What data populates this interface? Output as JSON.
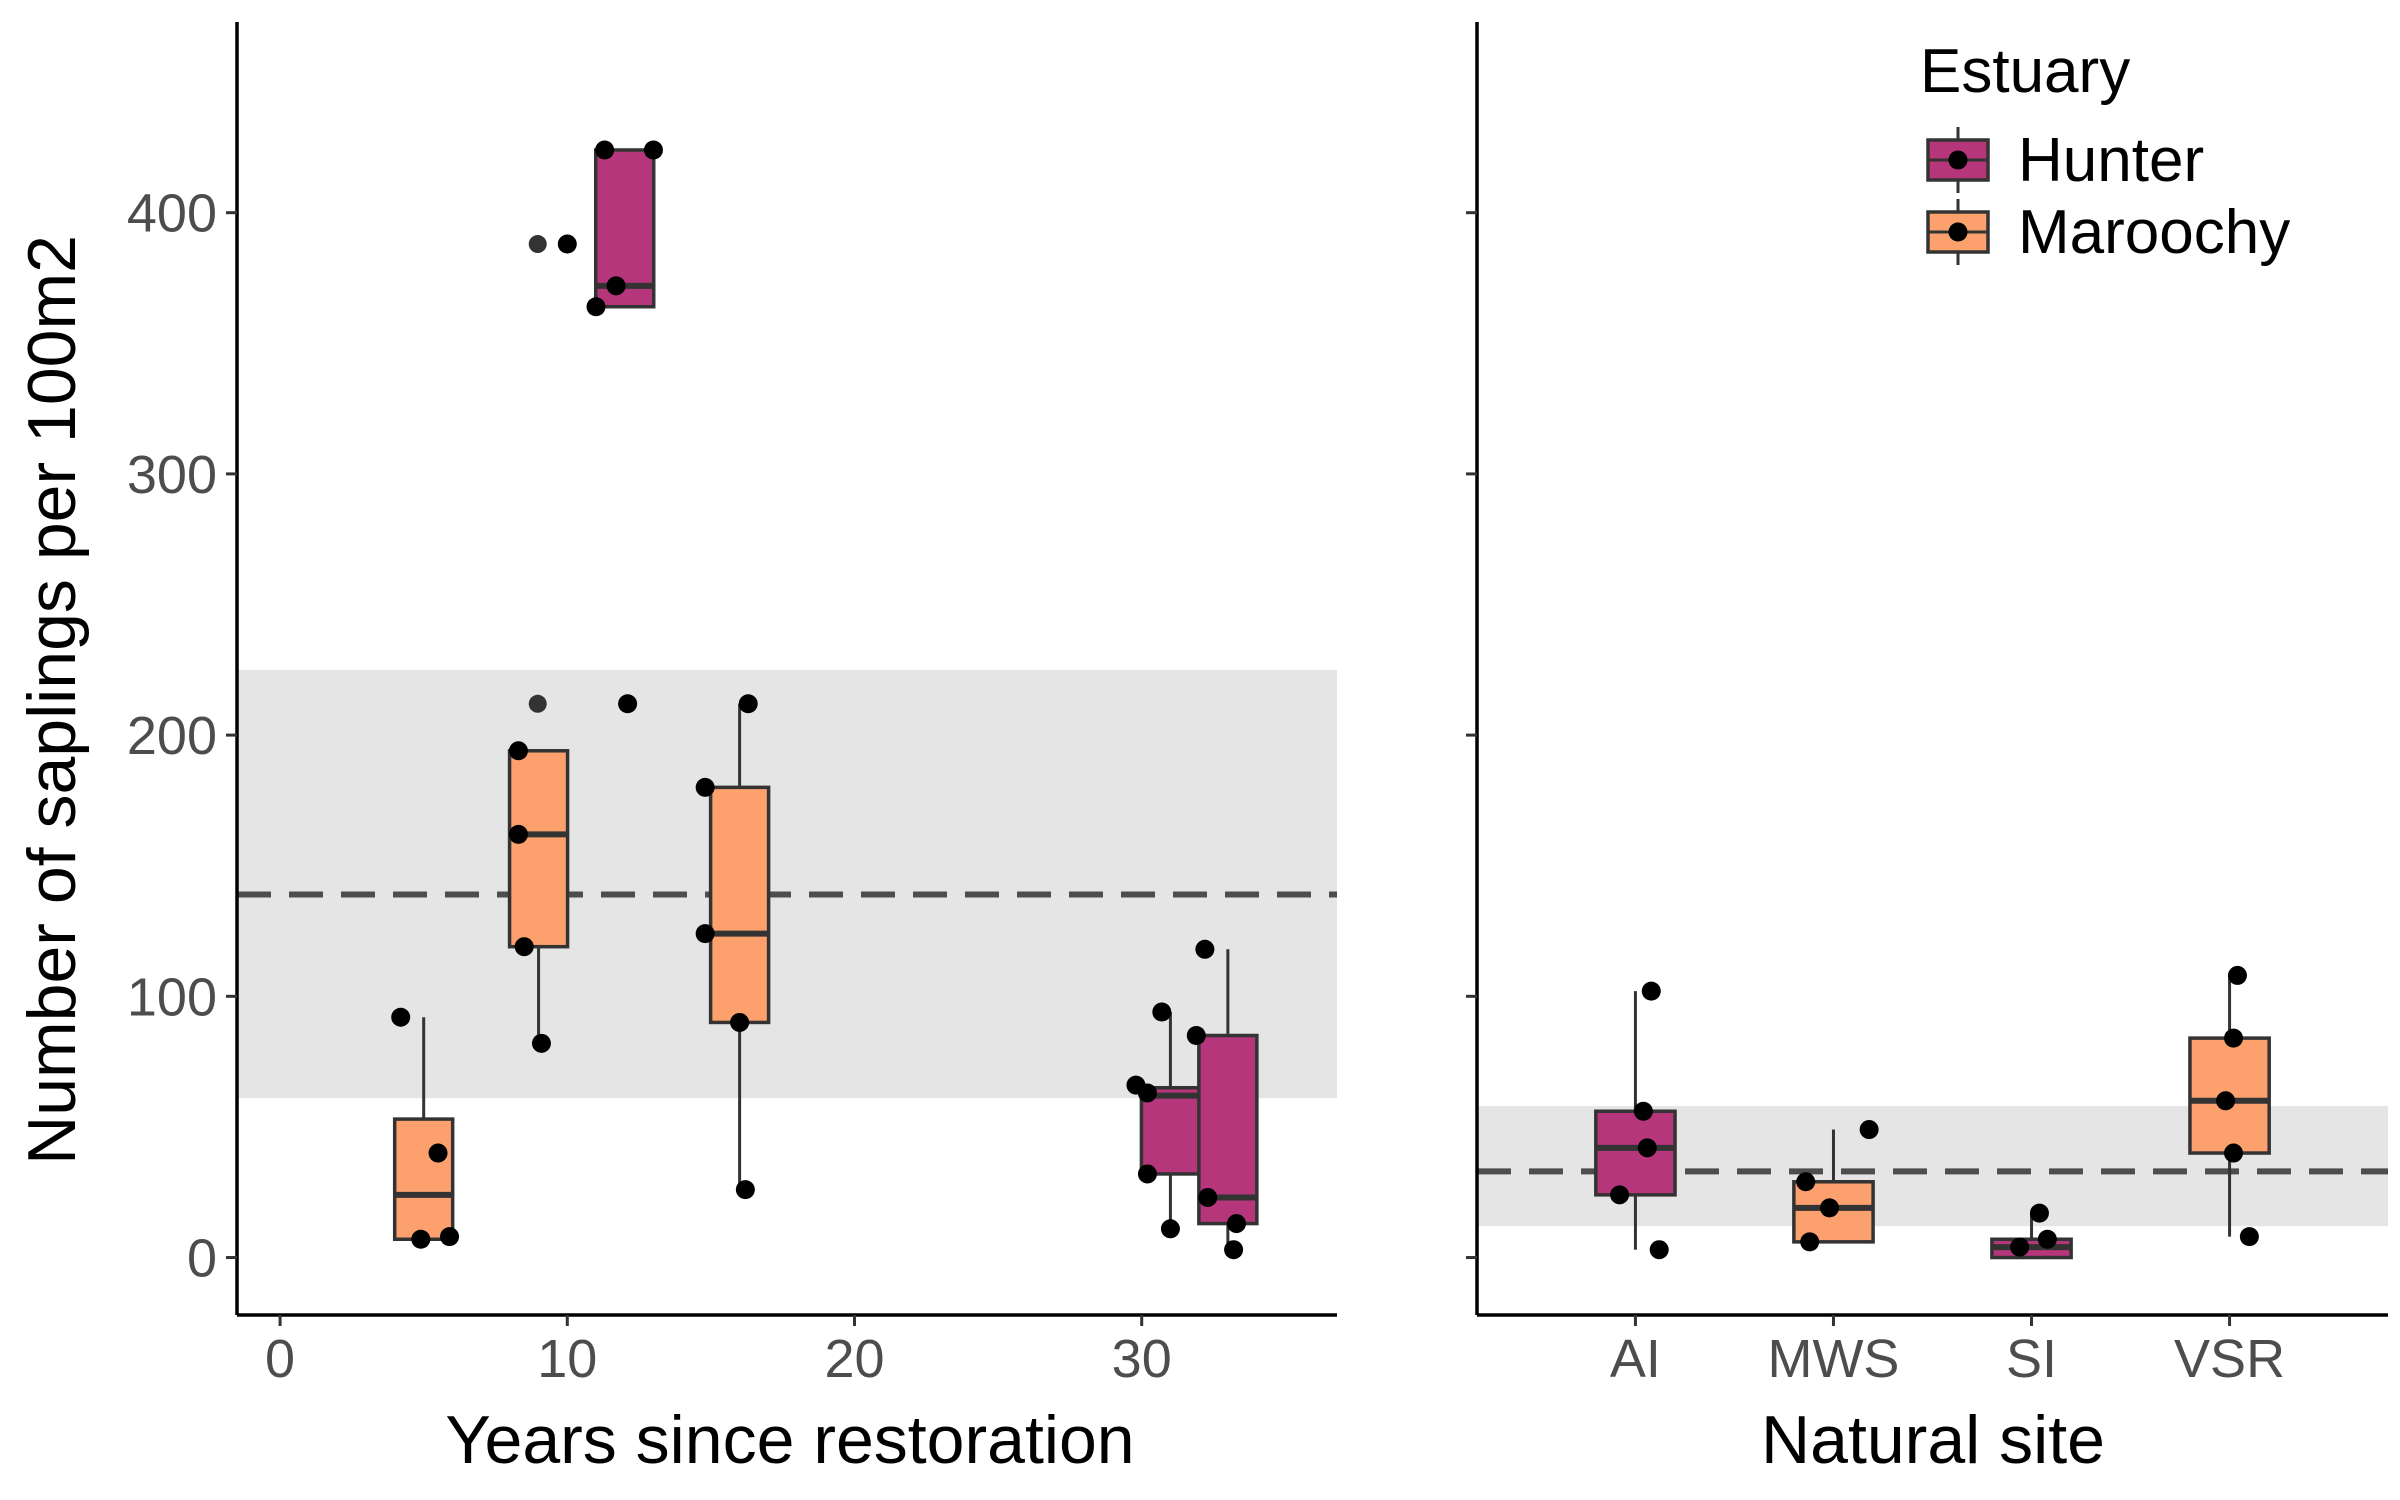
{
  "colors": {
    "hunter": "#B5367A",
    "maroochy": "#FCA06E",
    "band": "#E5E5E5",
    "line": "#333333",
    "refline": "#4D4D4D"
  },
  "legend": {
    "title": "Estuary",
    "items": [
      {
        "label": "Hunter",
        "color_key": "hunter"
      },
      {
        "label": "Maroochy",
        "color_key": "maroochy"
      }
    ],
    "position": "top-right"
  },
  "chart_data": [
    {
      "type": "box",
      "panel": "left",
      "xlabel": "Years since restoration",
      "ylabel": "Number of saplings per 100m2",
      "xlim": [
        -1.5,
        36.8
      ],
      "ylim": [
        -22,
        473
      ],
      "xticks": [
        0,
        10,
        20,
        30
      ],
      "yticks": [
        0,
        100,
        200,
        300,
        400
      ],
      "grid": false,
      "reference": {
        "mean": 139,
        "band": [
          61,
          225
        ]
      },
      "boxes": [
        {
          "estuary": "Maroochy",
          "x": 5,
          "q1": 7,
          "median": 24,
          "q3": 53,
          "whisker_low": 7,
          "whisker_high": 92,
          "outliers": []
        },
        {
          "estuary": "Maroochy",
          "x": 9,
          "q1": 119,
          "median": 162,
          "q3": 194,
          "whisker_low": 82,
          "whisker_high": 194,
          "outliers": []
        },
        {
          "estuary": "Hunter",
          "x": 12,
          "q1": 364,
          "median": 372,
          "q3": 424,
          "whisker_low": 364,
          "whisker_high": 424,
          "outliers": [
            388,
            212
          ]
        },
        {
          "estuary": "Maroochy",
          "x": 16,
          "q1": 90,
          "median": 124,
          "q3": 180,
          "whisker_low": 26,
          "whisker_high": 212,
          "outliers": []
        },
        {
          "estuary": "Hunter",
          "x": 31,
          "q1": 32,
          "median": 62,
          "q3": 65,
          "whisker_low": 11,
          "whisker_high": 94,
          "outliers": []
        },
        {
          "estuary": "Hunter",
          "x": 33,
          "q1": 13,
          "median": 23,
          "q3": 85,
          "whisker_low": 3,
          "whisker_high": 118,
          "outliers": []
        }
      ],
      "points": [
        {
          "estuary": "Maroochy",
          "x": 4.2,
          "y": 92
        },
        {
          "estuary": "Maroochy",
          "x": 4.9,
          "y": 7
        },
        {
          "estuary": "Maroochy",
          "x": 5.5,
          "y": 40
        },
        {
          "estuary": "Maroochy",
          "x": 5.9,
          "y": 8
        },
        {
          "estuary": "Maroochy",
          "x": 8.3,
          "y": 194
        },
        {
          "estuary": "Maroochy",
          "x": 8.3,
          "y": 162
        },
        {
          "estuary": "Maroochy",
          "x": 8.5,
          "y": 119
        },
        {
          "estuary": "Maroochy",
          "x": 9.1,
          "y": 82
        },
        {
          "estuary": "Hunter",
          "x": 10.0,
          "y": 388
        },
        {
          "estuary": "Hunter",
          "x": 11.3,
          "y": 424
        },
        {
          "estuary": "Hunter",
          "x": 13.0,
          "y": 424
        },
        {
          "estuary": "Hunter",
          "x": 11.7,
          "y": 372
        },
        {
          "estuary": "Hunter",
          "x": 11.0,
          "y": 364
        },
        {
          "estuary": "Hunter",
          "x": 12.1,
          "y": 212
        },
        {
          "estuary": "Maroochy",
          "x": 14.8,
          "y": 180
        },
        {
          "estuary": "Maroochy",
          "x": 14.8,
          "y": 124
        },
        {
          "estuary": "Maroochy",
          "x": 16.0,
          "y": 90
        },
        {
          "estuary": "Maroochy",
          "x": 16.3,
          "y": 212
        },
        {
          "estuary": "Maroochy",
          "x": 16.2,
          "y": 26
        },
        {
          "estuary": "Hunter",
          "x": 29.8,
          "y": 66
        },
        {
          "estuary": "Hunter",
          "x": 30.2,
          "y": 63
        },
        {
          "estuary": "Hunter",
          "x": 30.2,
          "y": 32
        },
        {
          "estuary": "Hunter",
          "x": 30.7,
          "y": 94
        },
        {
          "estuary": "Hunter",
          "x": 31.0,
          "y": 11
        },
        {
          "estuary": "Hunter",
          "x": 32.2,
          "y": 118
        },
        {
          "estuary": "Hunter",
          "x": 31.9,
          "y": 85
        },
        {
          "estuary": "Hunter",
          "x": 32.3,
          "y": 23
        },
        {
          "estuary": "Hunter",
          "x": 33.3,
          "y": 13
        },
        {
          "estuary": "Hunter",
          "x": 33.2,
          "y": 3
        }
      ]
    },
    {
      "type": "box",
      "panel": "right",
      "xlabel": "Natural site",
      "categories": [
        "AI",
        "MWS",
        "SI",
        "VSR"
      ],
      "ylim": [
        -22,
        473
      ],
      "yticks": [
        0,
        100,
        200,
        300,
        400
      ],
      "grid": false,
      "reference": {
        "mean": 33,
        "band": [
          12,
          58
        ]
      },
      "boxes": [
        {
          "estuary": "Hunter",
          "category": "AI",
          "q1": 24,
          "median": 42,
          "q3": 56,
          "whisker_low": 3,
          "whisker_high": 102,
          "outliers": []
        },
        {
          "estuary": "Maroochy",
          "category": "MWS",
          "q1": 6,
          "median": 19,
          "q3": 29,
          "whisker_low": 6,
          "whisker_high": 49,
          "outliers": []
        },
        {
          "estuary": "Hunter",
          "category": "SI",
          "q1": 0,
          "median": 4,
          "q3": 7,
          "whisker_low": 0,
          "whisker_high": 17,
          "outliers": []
        },
        {
          "estuary": "Maroochy",
          "category": "VSR",
          "q1": 40,
          "median": 60,
          "q3": 84,
          "whisker_low": 8,
          "whisker_high": 108,
          "outliers": []
        }
      ],
      "points": [
        {
          "estuary": "Hunter",
          "category": "AI",
          "offset": 0.08,
          "y": 102
        },
        {
          "estuary": "Hunter",
          "category": "AI",
          "offset": 0.04,
          "y": 56
        },
        {
          "estuary": "Hunter",
          "category": "AI",
          "offset": 0.06,
          "y": 42
        },
        {
          "estuary": "Hunter",
          "category": "AI",
          "offset": -0.08,
          "y": 24
        },
        {
          "estuary": "Hunter",
          "category": "AI",
          "offset": 0.12,
          "y": 3
        },
        {
          "estuary": "Maroochy",
          "category": "MWS",
          "offset": 0.18,
          "y": 49
        },
        {
          "estuary": "Maroochy",
          "category": "MWS",
          "offset": -0.14,
          "y": 29
        },
        {
          "estuary": "Maroochy",
          "category": "MWS",
          "offset": -0.02,
          "y": 19
        },
        {
          "estuary": "Maroochy",
          "category": "MWS",
          "offset": -0.12,
          "y": 6
        },
        {
          "estuary": "Hunter",
          "category": "SI",
          "offset": 0.04,
          "y": 17
        },
        {
          "estuary": "Hunter",
          "category": "SI",
          "offset": 0.08,
          "y": 7
        },
        {
          "estuary": "Hunter",
          "category": "SI",
          "offset": -0.06,
          "y": 4
        },
        {
          "estuary": "Maroochy",
          "category": "VSR",
          "offset": 0.04,
          "y": 108
        },
        {
          "estuary": "Maroochy",
          "category": "VSR",
          "offset": 0.02,
          "y": 84
        },
        {
          "estuary": "Maroochy",
          "category": "VSR",
          "offset": -0.02,
          "y": 60
        },
        {
          "estuary": "Maroochy",
          "category": "VSR",
          "offset": 0.02,
          "y": 40
        },
        {
          "estuary": "Maroochy",
          "category": "VSR",
          "offset": 0.1,
          "y": 8
        }
      ]
    }
  ]
}
